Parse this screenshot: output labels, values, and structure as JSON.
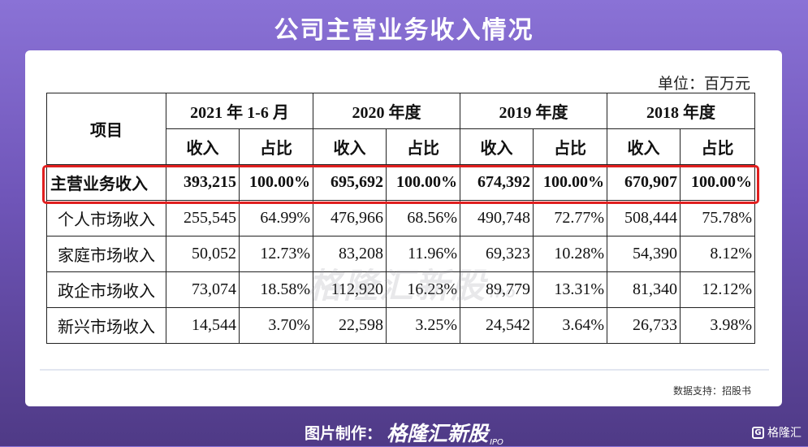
{
  "page": {
    "title": "公司主营业务收入情况",
    "unit": "单位：百万元",
    "source": "数据支持：招股书",
    "watermark": "格隆汇新股",
    "watermark_sub": "IPO",
    "footer_label": "图片制作：",
    "footer_brand": "格隆汇新股",
    "footer_brand_sub": "IPO",
    "corner_logo_letter": "G",
    "corner_logo": "格隆汇"
  },
  "colors": {
    "highlight": "#e01f1f",
    "background_top": "#8a72d6",
    "background_bottom": "#4f3a86"
  },
  "table": {
    "item_header": "项目",
    "periods": [
      "2021 年 1-6 月",
      "2020 年度",
      "2019 年度",
      "2018 年度"
    ],
    "sub_headers": [
      "收入",
      "占比"
    ],
    "rows": [
      {
        "label": "主营业务收入",
        "values": [
          "393,215",
          "100.00%",
          "695,692",
          "100.00%",
          "674,392",
          "100.00%",
          "670,907",
          "100.00%"
        ]
      },
      {
        "label": "个人市场收入",
        "values": [
          "255,545",
          "64.99%",
          "476,966",
          "68.56%",
          "490,748",
          "72.77%",
          "508,444",
          "75.78%"
        ]
      },
      {
        "label": "家庭市场收入",
        "values": [
          "50,052",
          "12.73%",
          "83,208",
          "11.96%",
          "69,323",
          "10.28%",
          "54,390",
          "8.12%"
        ]
      },
      {
        "label": "政企市场收入",
        "values": [
          "73,074",
          "18.58%",
          "112,920",
          "16.23%",
          "89,779",
          "13.31%",
          "81,340",
          "12.12%"
        ]
      },
      {
        "label": "新兴市场收入",
        "values": [
          "14,544",
          "3.70%",
          "22,598",
          "3.25%",
          "24,542",
          "3.64%",
          "26,733",
          "3.98%"
        ]
      }
    ]
  }
}
